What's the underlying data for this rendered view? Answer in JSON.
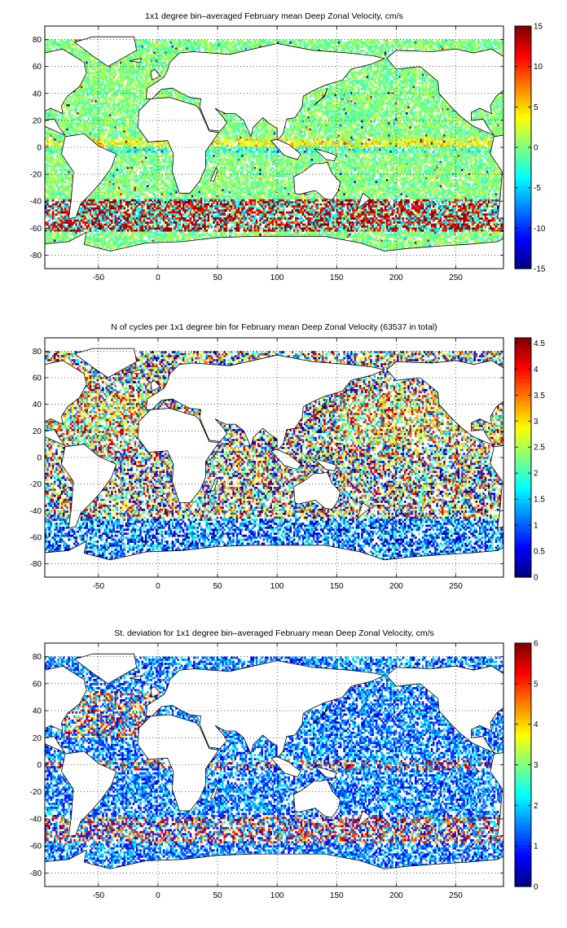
{
  "chart_data": [
    {
      "type": "heatmap",
      "title": "1x1 degree bin–averaged February mean Deep Zonal Velocity, cm/s",
      "xlabel": "",
      "ylabel": "",
      "xlim": [
        -95,
        290
      ],
      "ylim": [
        -90,
        90
      ],
      "x_ticks": [
        -50,
        0,
        50,
        100,
        150,
        200,
        250
      ],
      "y_ticks": [
        80,
        60,
        40,
        20,
        0,
        -20,
        -40,
        -60,
        -80
      ],
      "grid": true,
      "colorbar": {
        "min": -15,
        "max": 15,
        "ticks": [
          15,
          10,
          5,
          0,
          -5,
          -10,
          -15
        ],
        "colormap": "jet",
        "position": "right"
      }
    },
    {
      "type": "heatmap",
      "title": "N of cycles per 1x1 degree bin for February mean Deep Zonal Velocity (63537 in total)",
      "xlabel": "",
      "ylabel": "",
      "xlim": [
        -95,
        290
      ],
      "ylim": [
        -90,
        90
      ],
      "x_ticks": [
        -50,
        0,
        50,
        100,
        150,
        200,
        250
      ],
      "y_ticks": [
        80,
        60,
        40,
        20,
        0,
        -20,
        -40,
        -60,
        -80
      ],
      "grid": true,
      "total_cycles": 63537,
      "colorbar": {
        "min": 0,
        "max": 4.6,
        "ticks": [
          4.5,
          4,
          3.5,
          3,
          2.5,
          2,
          1.5,
          1,
          0.5,
          0
        ],
        "colormap": "jet",
        "position": "right"
      }
    },
    {
      "type": "heatmap",
      "title": "St. deviation for 1x1 degree bin–averaged February mean Deep Zonal Velocity, cm/s",
      "xlabel": "",
      "ylabel": "",
      "xlim": [
        -95,
        290
      ],
      "ylim": [
        -90,
        90
      ],
      "x_ticks": [
        -50,
        0,
        50,
        100,
        150,
        200,
        250
      ],
      "y_ticks": [
        80,
        60,
        40,
        20,
        0,
        -20,
        -40,
        -60,
        -80
      ],
      "grid": true,
      "colorbar": {
        "min": 0,
        "max": 6,
        "ticks": [
          6,
          5,
          4,
          3,
          2,
          1,
          0
        ],
        "colormap": "jet",
        "position": "right"
      }
    }
  ]
}
